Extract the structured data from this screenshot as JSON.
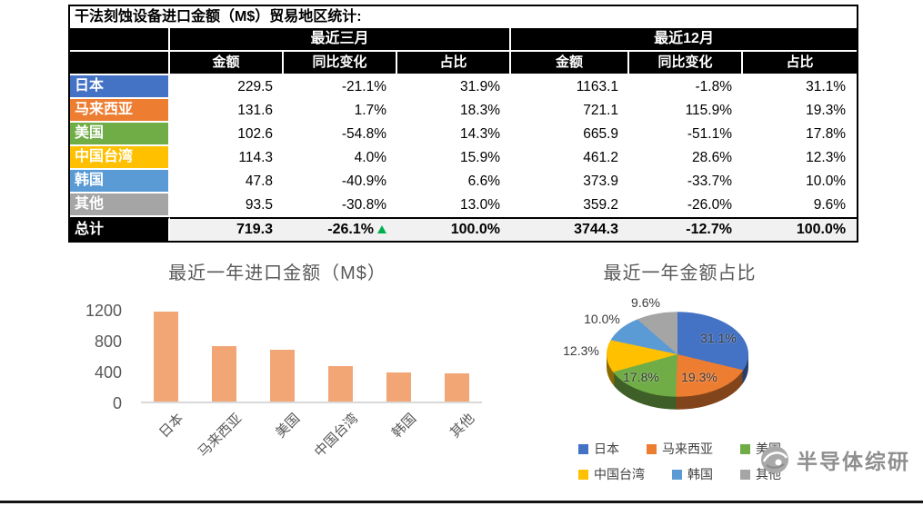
{
  "watermark": {
    "text": "半导体综研"
  },
  "colors": {
    "green_indicator": "#00B050",
    "axis_text": "#595959"
  },
  "chart_data": [
    {
      "type": "table",
      "title": "干法刻蚀设备进口金额（M$）贸易地区统计:",
      "column_groups": [
        "最近三月",
        "最近12月"
      ],
      "sub_headers": [
        "金额",
        "同比变化",
        "占比"
      ],
      "rows": [
        {
          "region": "日本",
          "color": "#4472C4",
          "values": [
            "229.5",
            "-21.1%",
            "31.9%",
            "1163.1",
            "-1.8%",
            "31.1%"
          ]
        },
        {
          "region": "马来西亚",
          "color": "#ED7D31",
          "values": [
            "131.6",
            "1.7%",
            "18.3%",
            "721.1",
            "115.9%",
            "19.3%"
          ]
        },
        {
          "region": "美国",
          "color": "#70AD47",
          "values": [
            "102.6",
            "-54.8%",
            "14.3%",
            "665.9",
            "-51.1%",
            "17.8%"
          ]
        },
        {
          "region": "中国台湾",
          "color": "#FFC000",
          "values": [
            "114.3",
            "4.0%",
            "15.9%",
            "461.2",
            "28.6%",
            "12.3%"
          ]
        },
        {
          "region": "韩国",
          "color": "#5B9BD5",
          "values": [
            "47.8",
            "-40.9%",
            "6.6%",
            "373.9",
            "-33.7%",
            "10.0%"
          ]
        },
        {
          "region": "其他",
          "color": "#A5A5A5",
          "values": [
            "93.5",
            "-30.8%",
            "13.0%",
            "359.2",
            "-26.0%",
            "9.6%"
          ]
        }
      ],
      "total_row": {
        "region": "总计",
        "values": [
          "719.3",
          "-26.1%",
          "100.0%",
          "3744.3",
          "-12.7%",
          "100.0%"
        ],
        "indicator_after_index": 1
      }
    },
    {
      "type": "bar",
      "title": "最近一年进口金额（M$）",
      "categories": [
        "日本",
        "马来西亚",
        "美国",
        "中国台湾",
        "韩国",
        "其他"
      ],
      "values": [
        1163.1,
        721.1,
        665.9,
        461.2,
        373.9,
        359.2
      ],
      "xlabel": "",
      "ylabel": "",
      "ylim": [
        0,
        1200
      ],
      "yticks": [
        0,
        400,
        800,
        1200
      ],
      "grid": false,
      "bar_color": "#F2A676"
    },
    {
      "type": "pie",
      "title": "最近一年金额占比",
      "style": "3d",
      "labels": [
        "日本",
        "马来西亚",
        "美国",
        "中国台湾",
        "韩国",
        "其他"
      ],
      "values": [
        31.1,
        19.3,
        17.8,
        12.3,
        10.0,
        9.6
      ],
      "value_labels": [
        "31.1%",
        "19.3%",
        "17.8%",
        "12.3%",
        "10.0%",
        "9.6%"
      ],
      "colors": [
        "#4472C4",
        "#ED7D31",
        "#70AD47",
        "#FFC000",
        "#5B9BD5",
        "#A5A5A5"
      ],
      "legend_position": "bottom"
    }
  ]
}
